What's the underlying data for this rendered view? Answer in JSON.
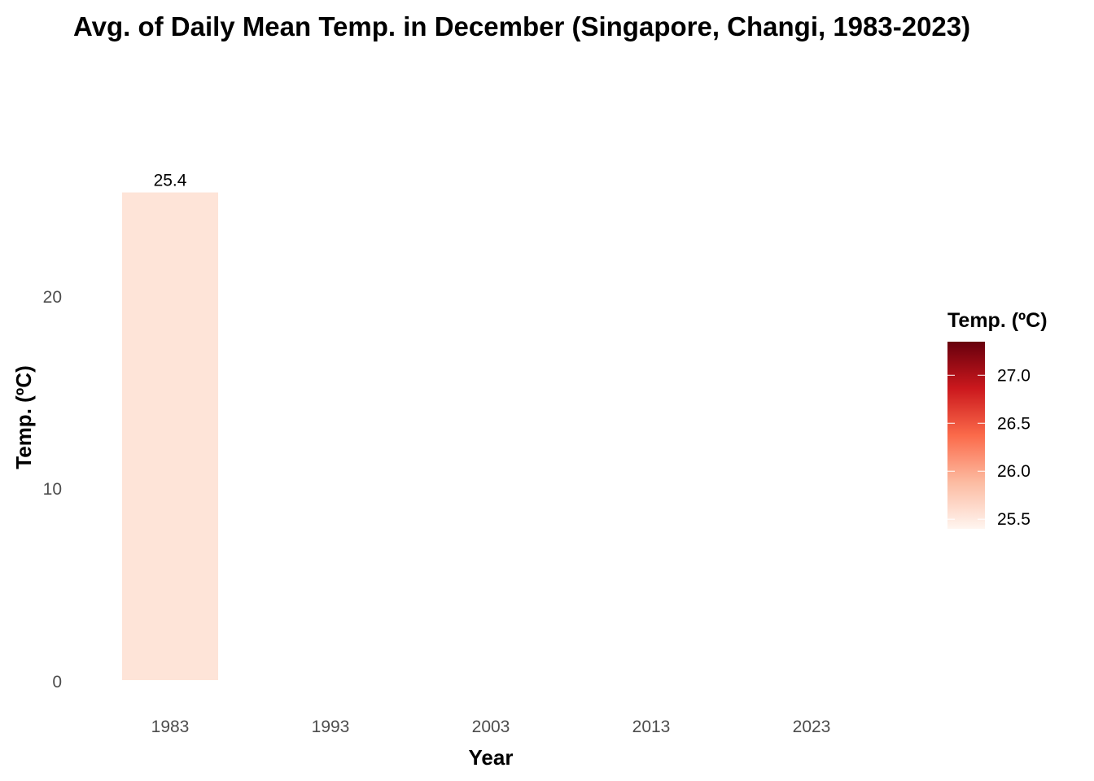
{
  "chart_data": {
    "type": "bar",
    "title": "Avg. of Daily Mean Temp. in December (Singapore, Changi, 1983-2023)",
    "xlabel": "Year",
    "ylabel": "Temp. (ºC)",
    "x_ticks": [
      "1983",
      "1993",
      "2003",
      "2013",
      "2023"
    ],
    "y_ticks": [
      "0",
      "10",
      "20"
    ],
    "ylim": [
      0,
      25.4
    ],
    "xlim": [
      1983,
      2023
    ],
    "grid": false,
    "bars": [
      {
        "year": 1983,
        "value": 25.4,
        "label": "25.4",
        "color": "#fee4d8"
      }
    ],
    "legend": {
      "title": "Temp. (ºC)",
      "placement": "right",
      "min": 25.4,
      "max": 27.35,
      "ticks": [
        "25.5",
        "26.0",
        "26.5",
        "27.0"
      ],
      "tick_values": [
        25.5,
        26.0,
        26.5,
        27.0
      ],
      "colors": [
        "#fff5f0",
        "#fcbba1",
        "#fb6a4a",
        "#cb181d",
        "#67000d"
      ]
    }
  }
}
